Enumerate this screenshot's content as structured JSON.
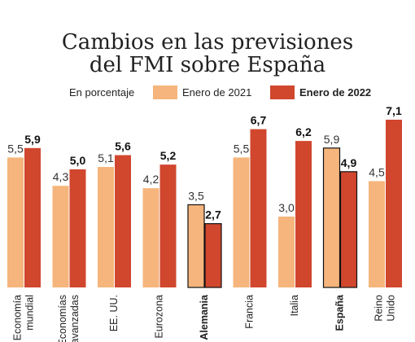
{
  "chart_data": {
    "type": "bar",
    "title_lines": [
      "Cambios en las previsiones",
      "del FMI sobre España"
    ],
    "unit_label": "En porcentaje",
    "categories": [
      [
        "Economía",
        "mundial"
      ],
      [
        "Economías",
        "avanzadas"
      ],
      [
        "EE. UU."
      ],
      [
        "Eurozona"
      ],
      [
        "Alemania"
      ],
      [
        "Francia"
      ],
      [
        "Italia"
      ],
      [
        "España"
      ],
      [
        "Reino",
        "Unido"
      ]
    ],
    "highlighted": [
      "Alemania",
      "España"
    ],
    "series": [
      {
        "name": "Enero de 2021",
        "color": "#f5b57c",
        "labels": [
          "5,5",
          "4,3",
          "5,1",
          "4,2",
          "3,5",
          "5,5",
          "3,0",
          "5,9",
          "4,5"
        ],
        "values": [
          5.5,
          4.3,
          5.1,
          4.2,
          3.5,
          5.5,
          3.0,
          5.9,
          4.5
        ]
      },
      {
        "name": "Enero de 2022",
        "color": "#d0472e",
        "labels": [
          "5,9",
          "5,0",
          "5,6",
          "5,2",
          "2,7",
          "6,7",
          "6,2",
          "4,9",
          "7,1"
        ],
        "values": [
          5.9,
          5.0,
          5.6,
          5.2,
          2.7,
          6.7,
          6.2,
          4.9,
          7.1
        ]
      }
    ],
    "ylim": [
      0,
      7.1
    ]
  }
}
